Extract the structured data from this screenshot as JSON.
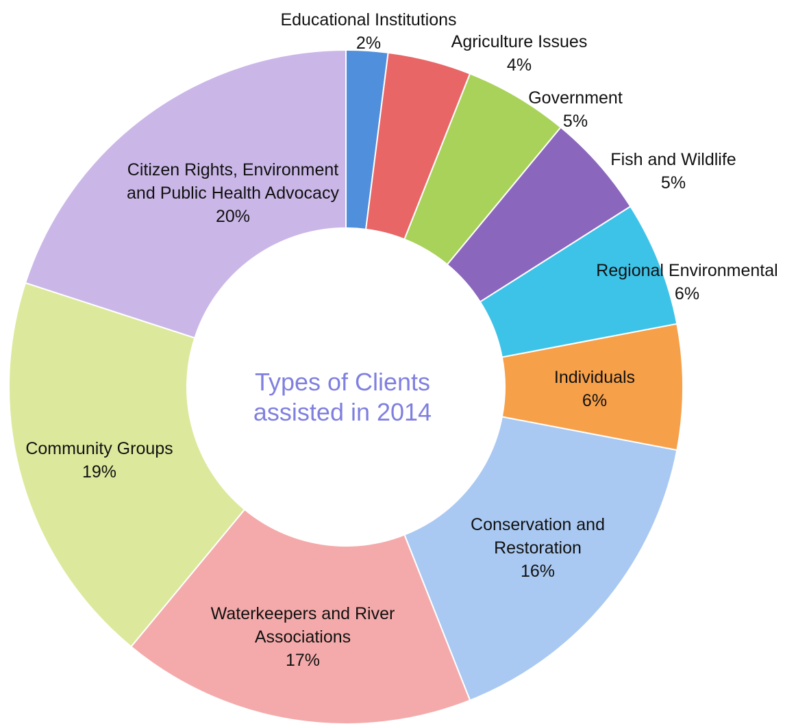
{
  "chart_data": {
    "type": "donut",
    "title": "Types of Clients assisted in 2014",
    "categories": [
      "Educational Institutions",
      "Agriculture Issues",
      "Government",
      "Fish and Wildlife",
      "Regional Environmental",
      "Individuals",
      "Conservation and Restoration",
      "Waterkeepers and River Associations",
      "Community Groups",
      "Citizen Rights, Environment and Public Health Advocacy"
    ],
    "values": [
      2,
      4,
      5,
      5,
      6,
      6,
      16,
      17,
      19,
      20
    ],
    "value_labels": [
      "2%",
      "4%",
      "5%",
      "5%",
      "6%",
      "6%",
      "16%",
      "17%",
      "19%",
      "20%"
    ],
    "colors": [
      "#4f8fdc",
      "#e86666",
      "#a9d25a",
      "#8b66bd",
      "#3ec3e8",
      "#f7a04a",
      "#a9c9f2",
      "#f4aaaa",
      "#dce99c",
      "#cab7e8"
    ]
  }
}
